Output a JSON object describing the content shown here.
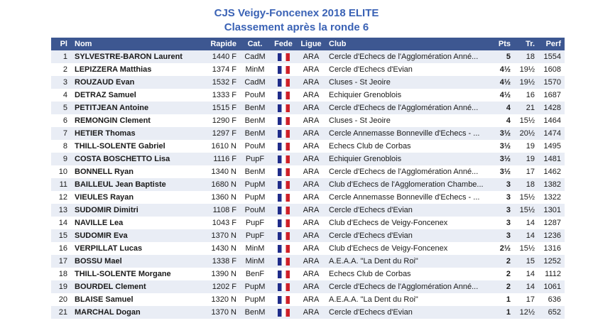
{
  "title": {
    "line1": "CJS Veigy-Foncenex 2018 ELITE",
    "line2": "Classement après la ronde 6"
  },
  "colors": {
    "header_bg": "#3D5791",
    "header_text": "#FFFFFF",
    "row_alt": "#E9EDF5",
    "row_text": "#1A1A1A",
    "title_color": "#3A62B5",
    "flag_blue": "#1F2C8A",
    "flag_white": "#FFFFFF",
    "flag_red": "#CE2029"
  },
  "table": {
    "headers": [
      "Pl",
      "Nom",
      "Rapide",
      "Cat.",
      "Fede",
      "Ligue",
      "Club",
      "Pts",
      "Tr.",
      "Perf"
    ],
    "fede_icon": "france-flag-icon",
    "rows": [
      {
        "pl": "1",
        "nom": "SYLVESTRE-BARON Laurent",
        "rapide": "1440 F",
        "cat": "CadM",
        "ligue": "ARA",
        "club": "Cercle d'Echecs de l'Agglomération Anné...",
        "pts": "5",
        "tr": "18",
        "perf": "1554"
      },
      {
        "pl": "2",
        "nom": "LEPIZZERA Matthias",
        "rapide": "1374 F",
        "cat": "MinM",
        "ligue": "ARA",
        "club": "Cercle d'Echecs d'Evian",
        "pts": "4½",
        "tr": "19½",
        "perf": "1608"
      },
      {
        "pl": "3",
        "nom": "ROUZAUD Evan",
        "rapide": "1532 F",
        "cat": "CadM",
        "ligue": "ARA",
        "club": "Cluses - St Jeoire",
        "pts": "4½",
        "tr": "19½",
        "perf": "1570"
      },
      {
        "pl": "4",
        "nom": "DETRAZ Samuel",
        "rapide": "1333 F",
        "cat": "PouM",
        "ligue": "ARA",
        "club": "Echiquier Grenoblois",
        "pts": "4½",
        "tr": "16",
        "perf": "1687"
      },
      {
        "pl": "5",
        "nom": "PETITJEAN Antoine",
        "rapide": "1515 F",
        "cat": "BenM",
        "ligue": "ARA",
        "club": "Cercle d'Echecs de l'Agglomération Anné...",
        "pts": "4",
        "tr": "21",
        "perf": "1428"
      },
      {
        "pl": "6",
        "nom": "REMONGIN Clement",
        "rapide": "1290 F",
        "cat": "BenM",
        "ligue": "ARA",
        "club": "Cluses - St Jeoire",
        "pts": "4",
        "tr": "15½",
        "perf": "1464"
      },
      {
        "pl": "7",
        "nom": "HETIER Thomas",
        "rapide": "1297 F",
        "cat": "BenM",
        "ligue": "ARA",
        "club": "Cercle Annemasse Bonneville d'Echecs - ...",
        "pts": "3½",
        "tr": "20½",
        "perf": "1474"
      },
      {
        "pl": "8",
        "nom": "THILL-SOLENTE Gabriel",
        "rapide": "1610 N",
        "cat": "PouM",
        "ligue": "ARA",
        "club": "Echecs Club de Corbas",
        "pts": "3½",
        "tr": "19",
        "perf": "1495"
      },
      {
        "pl": "9",
        "nom": "COSTA BOSCHETTO Lisa",
        "rapide": "1116 F",
        "cat": "PupF",
        "ligue": "ARA",
        "club": "Echiquier Grenoblois",
        "pts": "3½",
        "tr": "19",
        "perf": "1481"
      },
      {
        "pl": "10",
        "nom": "BONNELL Ryan",
        "rapide": "1340 N",
        "cat": "BenM",
        "ligue": "ARA",
        "club": "Cercle d'Echecs de l'Agglomération Anné...",
        "pts": "3½",
        "tr": "17",
        "perf": "1462"
      },
      {
        "pl": "11",
        "nom": "BAILLEUL Jean Baptiste",
        "rapide": "1680 N",
        "cat": "PupM",
        "ligue": "ARA",
        "club": "Club d'Echecs de l'Agglomeration Chambe...",
        "pts": "3",
        "tr": "18",
        "perf": "1382"
      },
      {
        "pl": "12",
        "nom": "VIEULES Rayan",
        "rapide": "1360 N",
        "cat": "PupM",
        "ligue": "ARA",
        "club": "Cercle Annemasse Bonneville d'Echecs - ...",
        "pts": "3",
        "tr": "15½",
        "perf": "1322"
      },
      {
        "pl": "13",
        "nom": "SUDOMIR Dimitri",
        "rapide": "1108 F",
        "cat": "PouM",
        "ligue": "ARA",
        "club": "Cercle d'Echecs d'Evian",
        "pts": "3",
        "tr": "15½",
        "perf": "1301"
      },
      {
        "pl": "14",
        "nom": "NAVILLE Lea",
        "rapide": "1043 F",
        "cat": "PupF",
        "ligue": "ARA",
        "club": "Club d'Echecs de Veigy-Foncenex",
        "pts": "3",
        "tr": "14",
        "perf": "1287"
      },
      {
        "pl": "15",
        "nom": "SUDOMIR Eva",
        "rapide": "1370 N",
        "cat": "PupF",
        "ligue": "ARA",
        "club": "Cercle d'Echecs d'Evian",
        "pts": "3",
        "tr": "14",
        "perf": "1236"
      },
      {
        "pl": "16",
        "nom": "VERPILLAT Lucas",
        "rapide": "1430 N",
        "cat": "MinM",
        "ligue": "ARA",
        "club": "Club d'Echecs de Veigy-Foncenex",
        "pts": "2½",
        "tr": "15½",
        "perf": "1316"
      },
      {
        "pl": "17",
        "nom": "BOSSU Mael",
        "rapide": "1338 F",
        "cat": "MinM",
        "ligue": "ARA",
        "club": "A.E.A.A. \"La Dent du Roi\"",
        "pts": "2",
        "tr": "15",
        "perf": "1252"
      },
      {
        "pl": "18",
        "nom": "THILL-SOLENTE Morgane",
        "rapide": "1390 N",
        "cat": "BenF",
        "ligue": "ARA",
        "club": "Echecs Club de Corbas",
        "pts": "2",
        "tr": "14",
        "perf": "1112"
      },
      {
        "pl": "19",
        "nom": "BOURDEL Clement",
        "rapide": "1202 F",
        "cat": "PupM",
        "ligue": "ARA",
        "club": "Cercle d'Echecs de l'Agglomération Anné...",
        "pts": "2",
        "tr": "14",
        "perf": "1061"
      },
      {
        "pl": "20",
        "nom": "BLAISE Samuel",
        "rapide": "1320 N",
        "cat": "PupM",
        "ligue": "ARA",
        "club": "A.E.A.A. \"La Dent du Roi\"",
        "pts": "1",
        "tr": "17",
        "perf": "636"
      },
      {
        "pl": "21",
        "nom": "MARCHAL Dogan",
        "rapide": "1370 N",
        "cat": "BenM",
        "ligue": "ARA",
        "club": "Cercle d'Echecs d'Evian",
        "pts": "1",
        "tr": "12½",
        "perf": "652"
      }
    ]
  }
}
